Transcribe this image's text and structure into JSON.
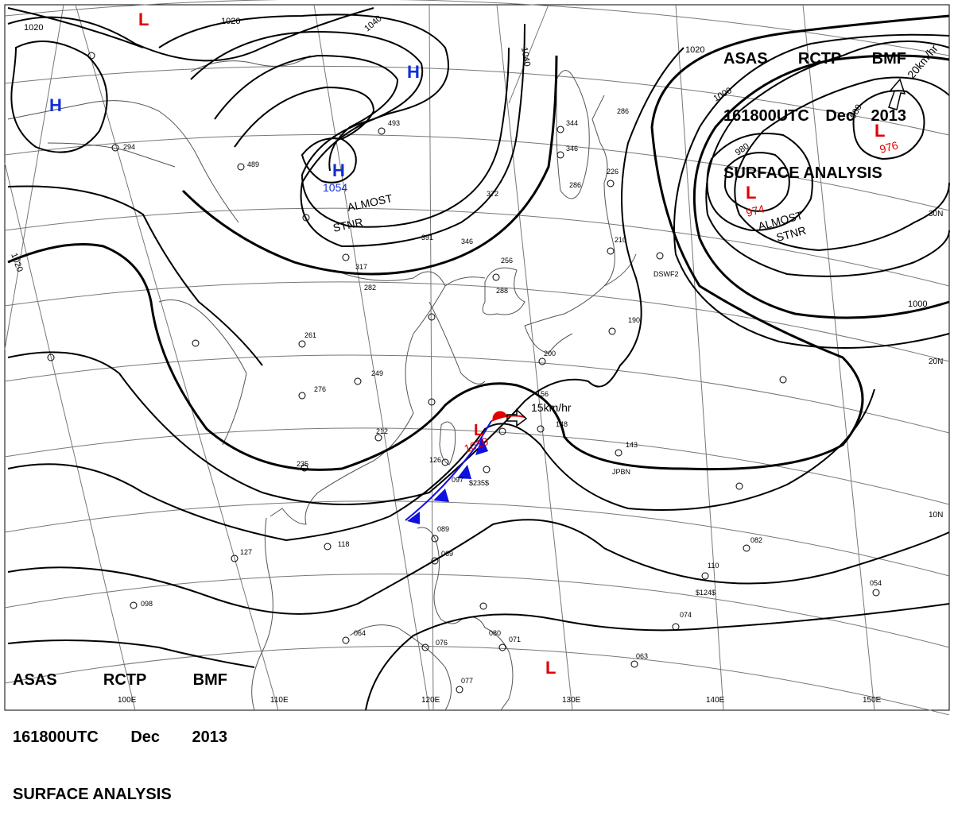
{
  "header": {
    "agency": "ASAS",
    "station": "RCTP",
    "office": "BMF",
    "valid_time": "161800UTC",
    "month": "Dec",
    "year": "2013",
    "product": "SURFACE ANALYSIS"
  },
  "pressure_systems": [
    {
      "type": "H",
      "color": "#1030d0",
      "value": ""
    },
    {
      "type": "H",
      "color": "#1030d0",
      "value": ""
    },
    {
      "type": "H",
      "color": "#1030d0",
      "value": "1054"
    },
    {
      "type": "L",
      "color": "#e00000",
      "value": ""
    },
    {
      "type": "L",
      "color": "#e00000",
      "value": "974"
    },
    {
      "type": "L",
      "color": "#e00000",
      "value": "976"
    },
    {
      "type": "L",
      "color": "#e00000",
      "value": "1010"
    },
    {
      "type": "L",
      "color": "#e00000",
      "value": ""
    }
  ],
  "annotations": {
    "stationary_high": [
      "ALMOST",
      "STNR"
    ],
    "stationary_low": [
      "ALMOST",
      "STNR"
    ],
    "motion_low_ne": "20km/hr",
    "motion_low_taiwan": "15km/hr"
  },
  "isobar_labels": [
    "1020",
    "1020",
    "1040",
    "1040",
    "1020",
    "1000",
    "980",
    "980",
    "1000",
    "1020"
  ],
  "lat_labels": [
    "30N",
    "20N",
    "10N"
  ],
  "lon_labels": [
    "100E",
    "110E",
    "120E",
    "130E",
    "140E",
    "150E"
  ],
  "station_values": [
    "294",
    "489",
    "493",
    "372",
    "344",
    "346",
    "261",
    "276",
    "249",
    "212",
    "235",
    "118",
    "127",
    "098",
    "064",
    "076",
    "069",
    "080",
    "071",
    "063",
    "074",
    "110",
    "082",
    "054",
    "143",
    "190",
    "210",
    "286",
    "200",
    "288",
    "256",
    "317",
    "282",
    "391",
    "346",
    "156",
    "148",
    "126",
    "097",
    "089",
    "077",
    "226",
    "286",
    "$235$",
    "$124$",
    "JPBN",
    "DSWF2"
  ],
  "colors": {
    "high": "#1030d0",
    "low": "#e00000",
    "front_cold": "#1010e0",
    "front_warm": "#e00000",
    "isobar": "#000000",
    "grid": "#777777",
    "coast": "#555555"
  }
}
